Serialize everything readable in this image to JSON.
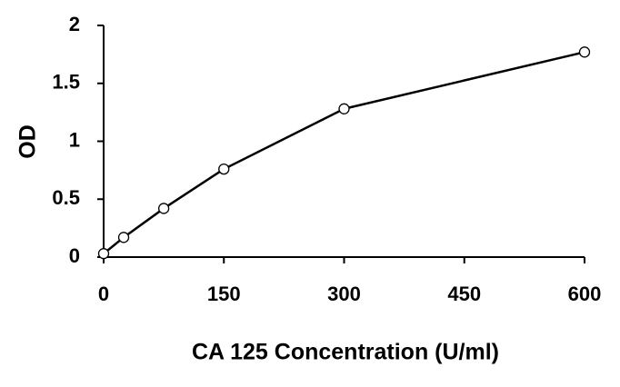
{
  "chart_data": {
    "type": "line",
    "x_label": "CA 125 Concentration (U/ml)",
    "y_label": "OD",
    "series": [
      {
        "color": "#000000",
        "x": [
          0,
          25,
          75,
          150,
          300,
          600
        ],
        "values": [
          0.03,
          0.17,
          0.42,
          0.76,
          1.28,
          1.77
        ]
      }
    ],
    "xlim": [
      0,
      600
    ],
    "xticks": [
      0,
      150,
      300,
      450,
      600
    ],
    "ylim": [
      0,
      2
    ],
    "yticks": [
      0,
      0.5,
      1,
      1.5,
      2
    ],
    "grid": false
  }
}
